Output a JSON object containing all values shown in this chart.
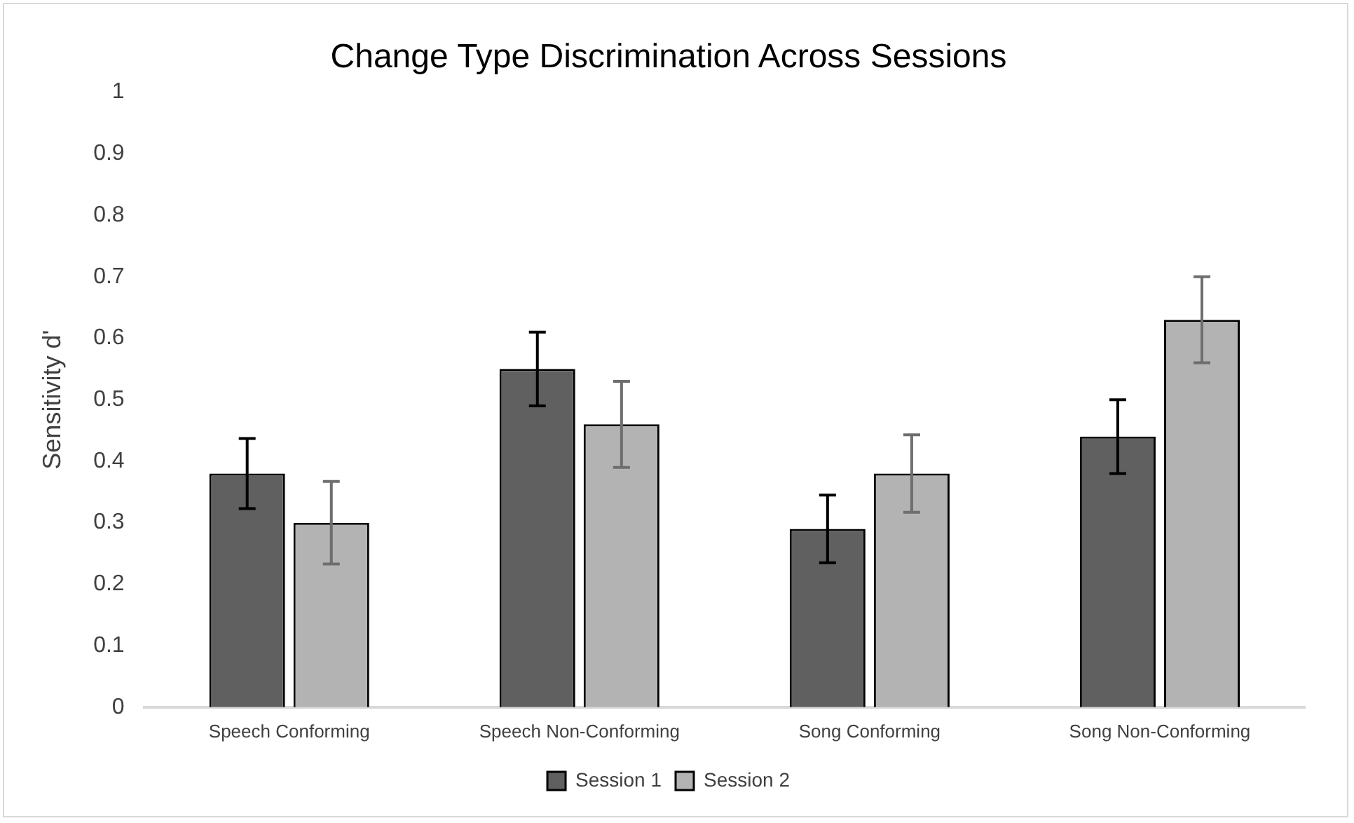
{
  "chart_data": {
    "type": "bar",
    "title": "Change Type Discrimination Across Sessions",
    "ylabel": "Sensitivity d'",
    "categories": [
      "Speech Conforming",
      "Speech Non-Conforming",
      "Song Conforming",
      "Song Non-Conforming"
    ],
    "series": [
      {
        "name": "Session 1",
        "color": "#606060",
        "values": [
          0.38,
          0.55,
          0.29,
          0.44
        ],
        "errors": [
          0.057,
          0.06,
          0.055,
          0.06
        ]
      },
      {
        "name": "Session 2",
        "color": "#b3b3b3",
        "values": [
          0.3,
          0.46,
          0.38,
          0.63
        ],
        "errors": [
          0.067,
          0.07,
          0.063,
          0.07
        ]
      }
    ],
    "ylim": [
      0,
      1
    ],
    "yticks": [
      0,
      0.1,
      0.2,
      0.3,
      0.4,
      0.5,
      0.6,
      0.7,
      0.8,
      0.9,
      1
    ],
    "grid": false,
    "legend": "bottom"
  }
}
